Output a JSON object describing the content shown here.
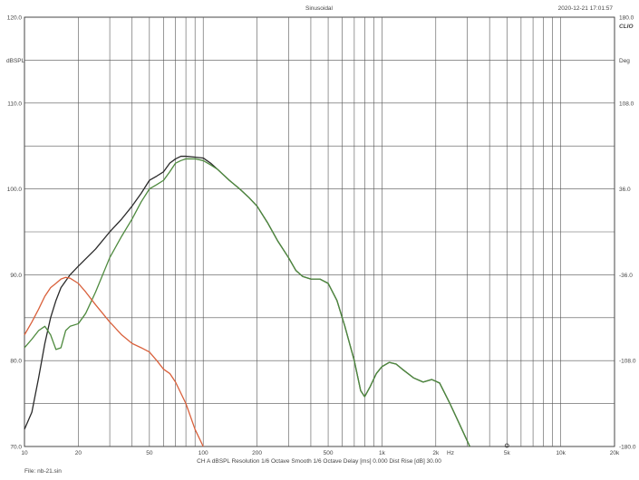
{
  "header": {
    "title": "Sinusoidal",
    "timestamp": "2020-12-21 17:01:57",
    "logo": "CLIO"
  },
  "chart_data": {
    "type": "line",
    "title": "Sinusoidal",
    "xscale": "log",
    "xlim": [
      10,
      20000
    ],
    "ylim": [
      70,
      120
    ],
    "ylim_right": [
      -180,
      180
    ],
    "ylabel": "dBSPL",
    "ylabel_right": "Deg",
    "xlabel": "Hz",
    "grid": true,
    "x_ticks": [
      {
        "value": 10,
        "label": "10"
      },
      {
        "value": 20,
        "label": "20"
      },
      {
        "value": 50,
        "label": "50"
      },
      {
        "value": 100,
        "label": "100"
      },
      {
        "value": 200,
        "label": "200"
      },
      {
        "value": 500,
        "label": "500"
      },
      {
        "value": 1000,
        "label": "1k"
      },
      {
        "value": 2000,
        "label": "2k"
      },
      {
        "value": 5000,
        "label": "5k"
      },
      {
        "value": 10000,
        "label": "10k"
      },
      {
        "value": 20000,
        "label": "20k"
      }
    ],
    "y_ticks_left": [
      "70.0",
      "80.0",
      "90.0",
      "100.0",
      "110.0",
      "120.0"
    ],
    "y_ticks_right": [
      "-180.0",
      "-108.0",
      "-36.0",
      "36.0",
      "108.0",
      "180.0"
    ],
    "series": [
      {
        "color": "#2a2a2a",
        "points": [
          [
            10,
            72
          ],
          [
            11,
            74
          ],
          [
            12,
            78
          ],
          [
            13,
            82
          ],
          [
            14,
            85
          ],
          [
            15,
            87
          ],
          [
            16,
            88.5
          ],
          [
            18,
            90
          ],
          [
            20,
            91
          ],
          [
            25,
            93
          ],
          [
            30,
            95
          ],
          [
            35,
            96.5
          ],
          [
            40,
            98
          ],
          [
            45,
            99.5
          ],
          [
            50,
            101
          ],
          [
            55,
            101.5
          ],
          [
            60,
            102
          ],
          [
            65,
            103
          ],
          [
            70,
            103.5
          ],
          [
            75,
            103.8
          ],
          [
            80,
            103.8
          ],
          [
            90,
            103.7
          ],
          [
            100,
            103.6
          ],
          [
            110,
            103
          ],
          [
            120,
            102.3
          ],
          [
            140,
            101
          ],
          [
            160,
            100
          ],
          [
            180,
            99
          ],
          [
            200,
            98
          ],
          [
            230,
            96
          ],
          [
            260,
            94
          ],
          [
            300,
            92
          ],
          [
            330,
            90.5
          ],
          [
            360,
            89.8
          ],
          [
            400,
            89.5
          ],
          [
            450,
            89.5
          ],
          [
            500,
            89
          ],
          [
            560,
            87
          ],
          [
            620,
            84
          ],
          [
            700,
            80
          ],
          [
            760,
            76.5
          ],
          [
            800,
            75.8
          ],
          [
            860,
            77
          ],
          [
            930,
            78.5
          ],
          [
            1000,
            79.3
          ],
          [
            1100,
            79.8
          ],
          [
            1200,
            79.6
          ],
          [
            1300,
            79
          ],
          [
            1500,
            78
          ],
          [
            1700,
            77.5
          ],
          [
            1900,
            77.8
          ],
          [
            2100,
            77.4
          ],
          [
            2400,
            75
          ],
          [
            2800,
            72
          ],
          [
            3100,
            70
          ]
        ]
      },
      {
        "color": "#4e8a3e",
        "points": [
          [
            10,
            81.5
          ],
          [
            11,
            82.5
          ],
          [
            12,
            83.5
          ],
          [
            13,
            84
          ],
          [
            14,
            83
          ],
          [
            15,
            81.3
          ],
          [
            16,
            81.5
          ],
          [
            17,
            83.5
          ],
          [
            18,
            84
          ],
          [
            20,
            84.3
          ],
          [
            22,
            85.5
          ],
          [
            25,
            88
          ],
          [
            30,
            92
          ],
          [
            35,
            94.5
          ],
          [
            40,
            96.5
          ],
          [
            45,
            98.5
          ],
          [
            50,
            100
          ],
          [
            55,
            100.5
          ],
          [
            60,
            101
          ],
          [
            65,
            102
          ],
          [
            70,
            103
          ],
          [
            75,
            103.3
          ],
          [
            80,
            103.5
          ],
          [
            90,
            103.5
          ],
          [
            100,
            103.3
          ],
          [
            110,
            102.8
          ],
          [
            120,
            102.3
          ],
          [
            140,
            101
          ],
          [
            160,
            100
          ],
          [
            180,
            99
          ],
          [
            200,
            98
          ],
          [
            230,
            96
          ],
          [
            260,
            94
          ],
          [
            300,
            92
          ],
          [
            330,
            90.5
          ],
          [
            360,
            89.8
          ],
          [
            400,
            89.5
          ],
          [
            450,
            89.5
          ],
          [
            500,
            89
          ],
          [
            560,
            87
          ],
          [
            620,
            84
          ],
          [
            700,
            80
          ],
          [
            760,
            76.5
          ],
          [
            800,
            75.8
          ],
          [
            860,
            77
          ],
          [
            930,
            78.5
          ],
          [
            1000,
            79.3
          ],
          [
            1100,
            79.8
          ],
          [
            1200,
            79.6
          ],
          [
            1300,
            79
          ],
          [
            1500,
            78
          ],
          [
            1700,
            77.5
          ],
          [
            1900,
            77.8
          ],
          [
            2100,
            77.4
          ],
          [
            2400,
            75
          ],
          [
            2800,
            72
          ],
          [
            3100,
            70
          ]
        ]
      },
      {
        "color": "#d9603b",
        "points": [
          [
            10,
            83
          ],
          [
            11,
            84.5
          ],
          [
            12,
            86
          ],
          [
            13,
            87.5
          ],
          [
            14,
            88.5
          ],
          [
            15,
            89
          ],
          [
            16,
            89.5
          ],
          [
            17,
            89.7
          ],
          [
            18,
            89.6
          ],
          [
            20,
            89
          ],
          [
            22,
            88
          ],
          [
            25,
            86.5
          ],
          [
            30,
            84.5
          ],
          [
            35,
            83
          ],
          [
            40,
            82
          ],
          [
            45,
            81.5
          ],
          [
            50,
            81
          ],
          [
            55,
            80
          ],
          [
            60,
            79
          ],
          [
            65,
            78.5
          ],
          [
            70,
            77.5
          ],
          [
            80,
            75
          ],
          [
            90,
            72
          ],
          [
            100,
            70
          ]
        ]
      }
    ],
    "footer": "CH A   dBSPL   Resolution 1/6 Octave   Smooth 1/6 Octave   Delay [ms] 0.000   Dist Rise [dB] 30.00",
    "file": "File: nb-21.sin"
  }
}
